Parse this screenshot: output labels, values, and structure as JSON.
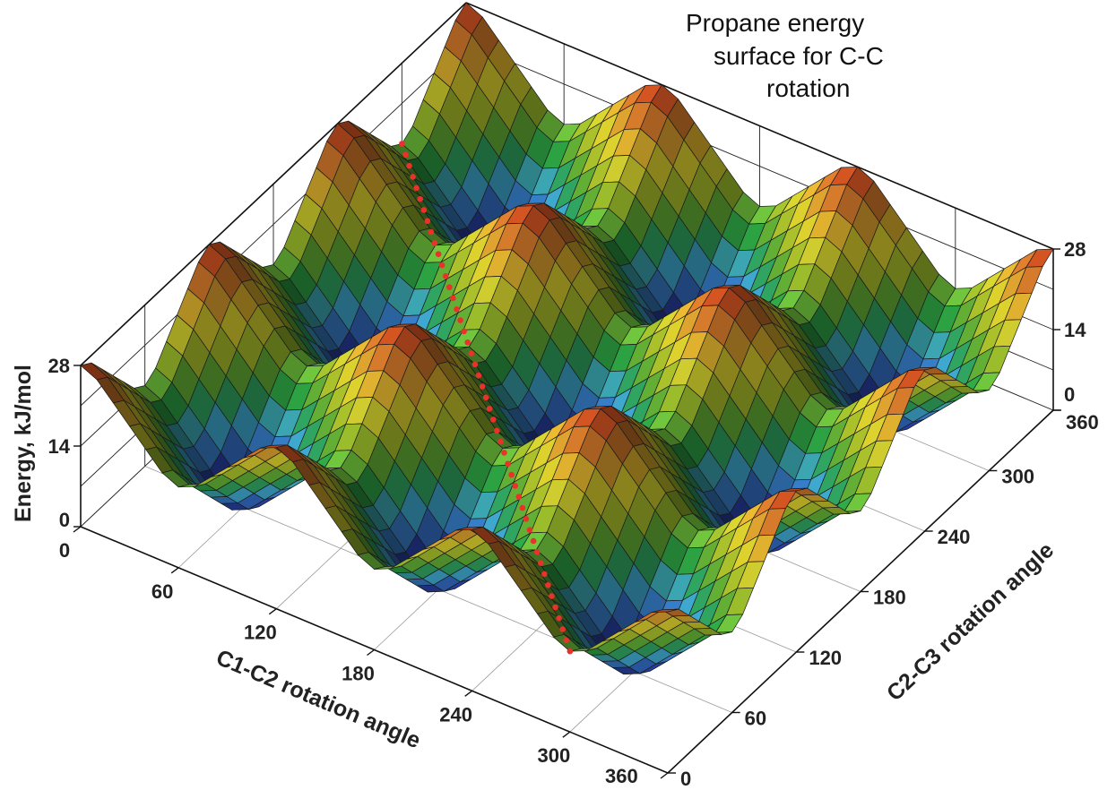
{
  "chart_data": {
    "type": "surface",
    "title": [
      "Propane energy",
      "surface for C-C",
      "rotation"
    ],
    "xlabel": "C1-C2 rotation angle",
    "ylabel": "C2-C3 rotation angle",
    "zlabel": "Energy, kJ/mol",
    "xlim": [
      0,
      360
    ],
    "ylim": [
      0,
      360
    ],
    "zlim": [
      0,
      28
    ],
    "x_ticks": [
      "0",
      "60",
      "120",
      "180",
      "240",
      "300",
      "360"
    ],
    "y_ticks": [
      "0",
      "60",
      "120",
      "180",
      "240",
      "300",
      "360"
    ],
    "z_ticks": [
      "0",
      "14",
      "28"
    ],
    "grid": true,
    "colormap": [
      "#1c1c6a",
      "#2f4fc2",
      "#45b4ea",
      "#2fae45",
      "#a6ca2e",
      "#f2e232",
      "#ee9232",
      "#b83018"
    ],
    "x": [
      0,
      30,
      60,
      90,
      120,
      150,
      180,
      210,
      240,
      270,
      300,
      330,
      360
    ],
    "y": [
      0,
      30,
      60,
      90,
      120,
      150,
      180,
      210,
      240,
      270,
      300,
      330,
      360
    ],
    "z": [
      [
        28,
        21,
        14,
        21,
        28,
        21,
        14,
        21,
        28,
        21,
        14,
        21,
        28
      ],
      [
        21,
        14,
        7,
        14,
        21,
        14,
        7,
        14,
        21,
        14,
        7,
        14,
        21
      ],
      [
        14,
        7,
        0,
        7,
        14,
        7,
        0,
        7,
        14,
        7,
        0,
        7,
        14
      ],
      [
        21,
        14,
        7,
        14,
        21,
        14,
        7,
        14,
        21,
        14,
        7,
        14,
        21
      ],
      [
        28,
        21,
        14,
        21,
        28,
        21,
        14,
        21,
        28,
        21,
        14,
        21,
        28
      ],
      [
        21,
        14,
        7,
        14,
        21,
        14,
        7,
        14,
        21,
        14,
        7,
        14,
        21
      ],
      [
        14,
        7,
        0,
        7,
        14,
        7,
        0,
        7,
        14,
        7,
        0,
        7,
        14
      ],
      [
        21,
        14,
        7,
        14,
        21,
        14,
        7,
        14,
        21,
        14,
        7,
        14,
        21
      ],
      [
        28,
        21,
        14,
        21,
        28,
        21,
        14,
        21,
        28,
        21,
        14,
        21,
        28
      ],
      [
        21,
        14,
        7,
        14,
        21,
        14,
        7,
        14,
        21,
        14,
        7,
        14,
        21
      ],
      [
        14,
        7,
        0,
        7,
        14,
        7,
        0,
        7,
        14,
        7,
        0,
        7,
        14
      ],
      [
        21,
        14,
        7,
        14,
        21,
        14,
        7,
        14,
        21,
        14,
        7,
        14,
        21
      ],
      [
        28,
        21,
        14,
        21,
        28,
        21,
        14,
        21,
        28,
        21,
        14,
        21,
        28
      ]
    ],
    "path": {
      "color": "#e8322a",
      "from": [
        0,
        300
      ],
      "to": [
        300,
        0
      ],
      "style": "dotted"
    }
  }
}
